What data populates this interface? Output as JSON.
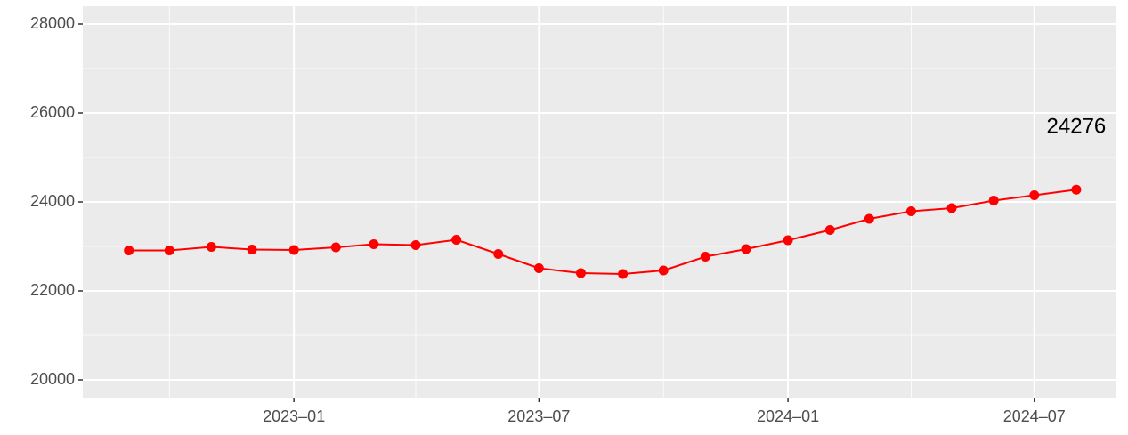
{
  "chart_data": {
    "type": "line",
    "x": [
      "2022-09",
      "2022-10",
      "2022-11",
      "2022-12",
      "2023-01",
      "2023-02",
      "2023-03",
      "2023-04",
      "2023-05",
      "2023-06",
      "2023-07",
      "2023-08",
      "2023-09",
      "2023-10",
      "2023-11",
      "2023-12",
      "2024-01",
      "2024-02",
      "2024-03",
      "2024-04",
      "2024-05",
      "2024-06",
      "2024-07",
      "2024-08"
    ],
    "series": [
      {
        "color": "#ff0000",
        "values": [
          22910,
          22910,
          22990,
          22930,
          22920,
          22980,
          23050,
          23030,
          23150,
          22830,
          22510,
          22400,
          22380,
          22460,
          22770,
          22940,
          23140,
          23370,
          23620,
          23790,
          23860,
          24030,
          24150,
          24276
        ]
      }
    ],
    "xlim": [
      "2022-07-29",
      "2024-08-30"
    ],
    "xticks": [
      {
        "value": "2023-01",
        "label": "2023–01"
      },
      {
        "value": "2023-07",
        "label": "2023–07"
      },
      {
        "value": "2024-01",
        "label": "2024–01"
      },
      {
        "value": "2024-07",
        "label": "2024–07"
      }
    ],
    "x_minor_grid": [
      "2022-10",
      "2023-04",
      "2023-10",
      "2024-04"
    ],
    "ylim": [
      19600,
      28400
    ],
    "yticks": [
      20000,
      22000,
      24000,
      26000,
      28000
    ],
    "y_minor_grid": [
      21000,
      23000,
      25000,
      27000
    ],
    "grid": true,
    "annotations": [
      {
        "text": "24276"
      }
    ]
  }
}
